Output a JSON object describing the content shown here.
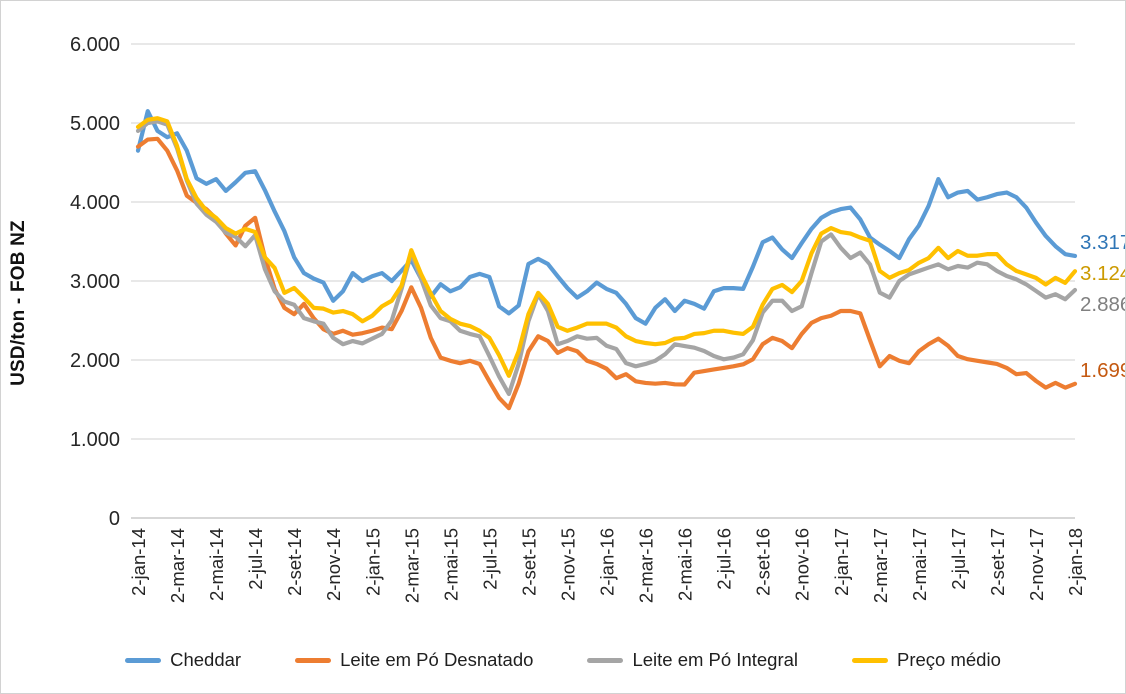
{
  "chart_data": {
    "type": "line",
    "title": "",
    "xlabel": "",
    "ylabel": "USD/ton - FOB NZ",
    "ylim": [
      0,
      6000
    ],
    "grid": "horizontal-only",
    "legend_position": "bottom",
    "y_ticks": [
      {
        "value": 6000,
        "label": "6.000"
      },
      {
        "value": 5000,
        "label": "5.000"
      },
      {
        "value": 4000,
        "label": "4.000"
      },
      {
        "value": 3000,
        "label": "3.000"
      },
      {
        "value": 2000,
        "label": "2.000"
      },
      {
        "value": 1000,
        "label": "1.000"
      },
      {
        "value": 0,
        "label": "0"
      }
    ],
    "x_tick_labels": [
      "2-jan-14",
      "2-mar-14",
      "2-mai-14",
      "2-jul-14",
      "2-set-14",
      "2-nov-14",
      "2-jan-15",
      "2-mar-15",
      "2-mai-15",
      "2-jul-15",
      "2-set-15",
      "2-nov-15",
      "2-jan-16",
      "2-mar-16",
      "2-mai-16",
      "2-jul-16",
      "2-set-16",
      "2-nov-16",
      "2-jan-17",
      "2-mar-17",
      "2-mai-17",
      "2-jul-17",
      "2-set-17",
      "2-nov-17",
      "2-jan-18"
    ],
    "points_per_labelled_tick": 4,
    "series": [
      {
        "name": "Cheddar",
        "color": "#5B9BD5",
        "end_label": {
          "text": "3.317",
          "color": "#2E75B6",
          "dy": -14
        },
        "values": [
          4650,
          5150,
          4900,
          4820,
          4870,
          4650,
          4300,
          4230,
          4290,
          4140,
          4250,
          4370,
          4390,
          4150,
          3880,
          3630,
          3300,
          3100,
          3030,
          2980,
          2750,
          2870,
          3100,
          3000,
          3060,
          3100,
          3000,
          3130,
          3265,
          3030,
          2800,
          2960,
          2870,
          2920,
          3050,
          3090,
          3050,
          2680,
          2590,
          2690,
          3215,
          3280,
          3215,
          3060,
          2910,
          2790,
          2870,
          2980,
          2900,
          2850,
          2710,
          2530,
          2460,
          2660,
          2770,
          2620,
          2750,
          2710,
          2650,
          2870,
          2910,
          2910,
          2900,
          3180,
          3490,
          3550,
          3400,
          3290,
          3480,
          3660,
          3800,
          3870,
          3910,
          3930,
          3780,
          3550,
          3460,
          3380,
          3290,
          3530,
          3700,
          3950,
          4290,
          4060,
          4120,
          4140,
          4030,
          4060,
          4100,
          4120,
          4060,
          3930,
          3740,
          3570,
          3440,
          3340,
          3317
        ]
      },
      {
        "name": "Leite em Pó Desnatado",
        "color": "#ED7D31",
        "end_label": {
          "text": "1.699",
          "color": "#C45911",
          "dy": -14
        },
        "values": [
          4700,
          4790,
          4800,
          4650,
          4400,
          4080,
          3990,
          3910,
          3790,
          3600,
          3450,
          3700,
          3800,
          3300,
          2900,
          2660,
          2580,
          2710,
          2530,
          2390,
          2330,
          2370,
          2320,
          2340,
          2370,
          2410,
          2390,
          2620,
          2920,
          2660,
          2280,
          2030,
          1990,
          1960,
          1990,
          1950,
          1730,
          1520,
          1390,
          1700,
          2110,
          2300,
          2240,
          2090,
          2150,
          2110,
          1990,
          1950,
          1890,
          1770,
          1820,
          1730,
          1710,
          1700,
          1710,
          1692,
          1690,
          1840,
          1860,
          1880,
          1900,
          1920,
          1945,
          2010,
          2200,
          2280,
          2240,
          2150,
          2330,
          2470,
          2530,
          2560,
          2620,
          2620,
          2590,
          2250,
          1920,
          2050,
          1990,
          1960,
          2110,
          2200,
          2270,
          2180,
          2050,
          2010,
          1990,
          1970,
          1950,
          1900,
          1820,
          1835,
          1735,
          1650,
          1710,
          1650,
          1699
        ]
      },
      {
        "name": "Leite em Pó Integral",
        "color": "#A5A5A5",
        "end_label": {
          "text": "2.886",
          "color": "#808080",
          "dy": 14
        },
        "values": [
          4900,
          5000,
          5020,
          4980,
          4680,
          4270,
          3980,
          3840,
          3750,
          3610,
          3560,
          3440,
          3580,
          3150,
          2870,
          2740,
          2700,
          2530,
          2490,
          2460,
          2280,
          2200,
          2240,
          2210,
          2270,
          2330,
          2500,
          2900,
          3350,
          3030,
          2690,
          2530,
          2490,
          2370,
          2330,
          2300,
          2050,
          1790,
          1570,
          1950,
          2490,
          2835,
          2620,
          2200,
          2240,
          2300,
          2270,
          2280,
          2180,
          2140,
          1960,
          1920,
          1950,
          1990,
          2072,
          2198,
          2177,
          2156,
          2114,
          2051,
          2009,
          2030,
          2072,
          2250,
          2600,
          2750,
          2750,
          2620,
          2680,
          3100,
          3500,
          3590,
          3420,
          3290,
          3360,
          3210,
          2853,
          2790,
          3000,
          3084,
          3127,
          3170,
          3211,
          3148,
          3190,
          3170,
          3232,
          3211,
          3127,
          3063,
          3021,
          2958,
          2874,
          2790,
          2832,
          2769,
          2886
        ]
      },
      {
        "name": "Preço médio",
        "color": "#FFC000",
        "end_label": {
          "text": "3.124",
          "color": "#CC9A00",
          "dy": 2
        },
        "values": [
          4950,
          5040,
          5060,
          5020,
          4710,
          4290,
          4050,
          3890,
          3800,
          3670,
          3600,
          3660,
          3620,
          3300,
          3165,
          2850,
          2911,
          2790,
          2660,
          2650,
          2600,
          2620,
          2580,
          2490,
          2560,
          2680,
          2750,
          2940,
          3390,
          3090,
          2840,
          2620,
          2520,
          2460,
          2430,
          2370,
          2280,
          2060,
          1800,
          2110,
          2580,
          2850,
          2710,
          2420,
          2370,
          2410,
          2460,
          2460,
          2460,
          2410,
          2300,
          2240,
          2215,
          2200,
          2215,
          2270,
          2280,
          2330,
          2340,
          2370,
          2370,
          2346,
          2330,
          2420,
          2700,
          2900,
          2950,
          2860,
          3000,
          3350,
          3600,
          3670,
          3620,
          3600,
          3550,
          3510,
          3127,
          3040,
          3100,
          3140,
          3230,
          3290,
          3420,
          3290,
          3380,
          3320,
          3320,
          3340,
          3340,
          3210,
          3127,
          3084,
          3040,
          2956,
          3040,
          2977,
          3124
        ]
      }
    ]
  },
  "layout_colors": {
    "gridline": "#D9D9D9",
    "axis_line": "#BFBFBF",
    "tick_text": "#262626"
  }
}
